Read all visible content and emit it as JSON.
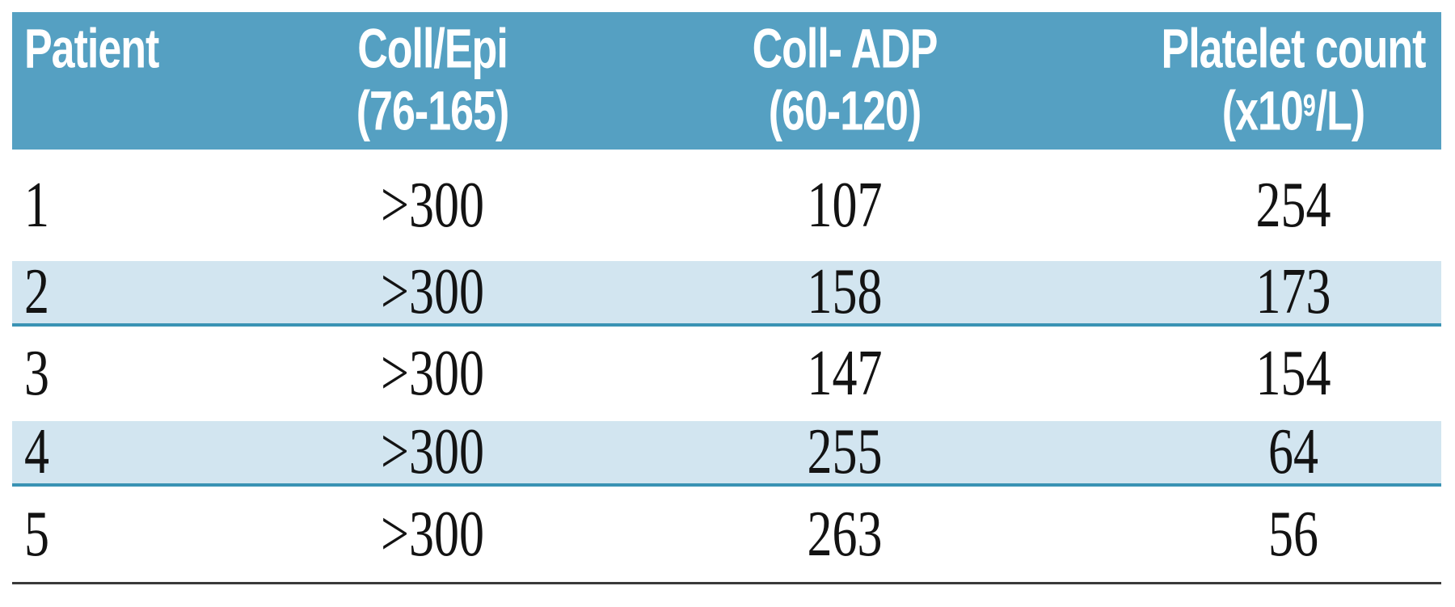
{
  "colors": {
    "header_bg": "#55a0c2",
    "header_text": "#ffffff",
    "stripe_bg": "#d2e5f0",
    "stripe_border": "#3a93b4",
    "bottom_rule": "#3a3a3a",
    "body_text": "#131313",
    "page_bg": "#ffffff"
  },
  "table": {
    "columns": [
      {
        "line1": "Patient",
        "line2": ""
      },
      {
        "line1": "Coll/Epi",
        "line2": "(76-165)"
      },
      {
        "line1": "Coll- ADP",
        "line2": "(60-120)"
      },
      {
        "line1": "Platelet count",
        "line2_prefix": "(x10",
        "line2_sup": "9",
        "line2_suffix": "/L)"
      }
    ],
    "rows": [
      {
        "patient": "1",
        "coll_epi": ">300",
        "coll_adp": "107",
        "platelet": "254"
      },
      {
        "patient": "2",
        "coll_epi": ">300",
        "coll_adp": "158",
        "platelet": "173"
      },
      {
        "patient": "3",
        "coll_epi": ">300",
        "coll_adp": "147",
        "platelet": "154"
      },
      {
        "patient": "4",
        "coll_epi": ">300",
        "coll_adp": "255",
        "platelet": "64"
      },
      {
        "patient": "5",
        "coll_epi": ">300",
        "coll_adp": "263",
        "platelet": "56"
      }
    ]
  }
}
